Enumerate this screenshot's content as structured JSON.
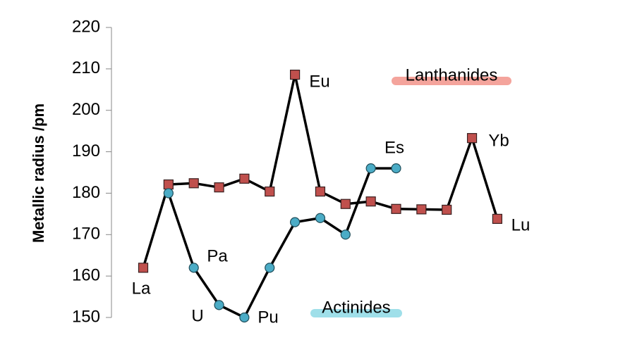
{
  "chart_data": {
    "type": "line",
    "y_label": "Metallic radius /pm",
    "categories": [
      null,
      null,
      null,
      null,
      null,
      null,
      null,
      null,
      null,
      null,
      null,
      null,
      null,
      null,
      null
    ],
    "series": [
      {
        "name": "Lanthanides",
        "color": "#c0504d",
        "marker": "square",
        "values": [
          162,
          182.1,
          182.4,
          181.4,
          183.5,
          180.4,
          208.6,
          180.4,
          177.4,
          178,
          176.2,
          176.1,
          176,
          193.3,
          173.8
        ]
      },
      {
        "name": "Actinides",
        "color": "#4bacc6",
        "marker": "circle",
        "values": [
          null,
          180,
          162,
          153,
          150,
          162,
          173,
          174,
          170,
          186,
          186,
          null,
          null,
          null,
          null
        ]
      }
    ],
    "annotations": [
      "La",
      "Pa",
      "U",
      "Pu",
      "Eu",
      "Es",
      "Yb",
      "Lu"
    ],
    "ylim": [
      150,
      220
    ],
    "yticks": [
      150,
      160,
      170,
      180,
      190,
      200,
      210,
      220
    ]
  }
}
